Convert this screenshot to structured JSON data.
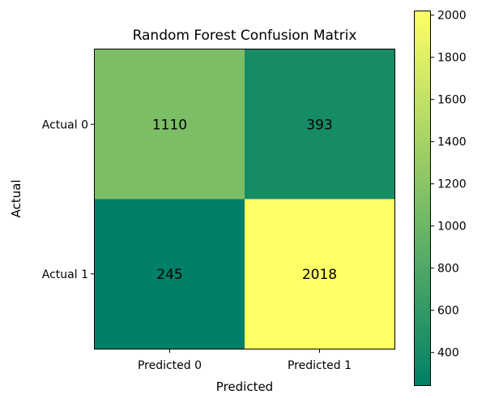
{
  "chart_data": {
    "type": "heatmap",
    "title": "Random Forest Confusion Matrix",
    "xlabel": "Predicted",
    "ylabel": "Actual",
    "x_categories": [
      "Predicted 0",
      "Predicted 1"
    ],
    "y_categories": [
      "Actual 0",
      "Actual 1"
    ],
    "values": [
      [
        1110,
        393
      ],
      [
        245,
        2018
      ]
    ],
    "colormap": "summer",
    "colorbar": {
      "min": 245,
      "max": 2018,
      "ticks": [
        400,
        600,
        800,
        1000,
        1200,
        1400,
        1600,
        1800,
        2000
      ]
    },
    "colors": {
      "low": "#008066",
      "high": "#ffff66"
    }
  }
}
